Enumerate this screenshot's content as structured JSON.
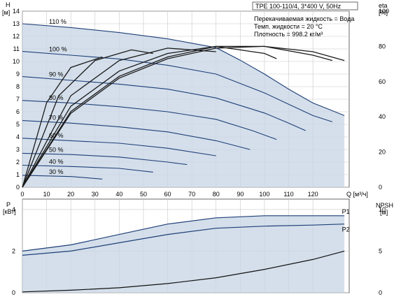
{
  "chart_data": [
    {
      "type": "line",
      "panel": "head-and-efficiency",
      "title": "TPE 100-110/4, 3*400 V, 50Hz",
      "notes": [
        "Перекачиваемая жидкость = Вода",
        "Темп. жидкости = 20 °C",
        "Плотность = 998.2 кг/м³"
      ],
      "ylabel": "H",
      "yunit": "[м]",
      "y2label": "eta",
      "y2unit": "[%]",
      "xlabel": "Q [м³/ч]",
      "xlim": [
        0,
        135
      ],
      "ylim": [
        0,
        14
      ],
      "y2lim": [
        0,
        100
      ],
      "xticks": [
        0,
        10,
        20,
        30,
        40,
        50,
        60,
        70,
        80,
        90,
        100,
        110,
        120
      ],
      "yticks": [
        0,
        1,
        2,
        3,
        4,
        5,
        6,
        7,
        8,
        9,
        10,
        11,
        12,
        13,
        14
      ],
      "y2ticks": [
        0,
        20,
        40,
        60,
        80,
        100
      ],
      "grid": true,
      "series": [
        {
          "name": "110 %",
          "x": [
            0,
            20,
            40,
            60,
            80,
            90,
            100,
            110,
            120,
            133
          ],
          "y": [
            13.0,
            12.7,
            12.3,
            11.8,
            11.1,
            10.1,
            9.0,
            7.8,
            6.7,
            5.7
          ]
        },
        {
          "name": "100 %",
          "x": [
            0,
            20,
            40,
            60,
            80,
            100,
            110,
            120,
            128
          ],
          "y": [
            10.8,
            10.5,
            10.2,
            9.7,
            9.0,
            7.5,
            6.6,
            5.7,
            5.2
          ]
        },
        {
          "name": "90 %",
          "x": [
            0,
            20,
            40,
            60,
            80,
            100,
            110,
            117
          ],
          "y": [
            8.8,
            8.5,
            8.2,
            7.8,
            7.1,
            5.9,
            5.1,
            4.5
          ]
        },
        {
          "name": "80 %",
          "x": [
            0,
            20,
            40,
            60,
            80,
            95,
            105
          ],
          "y": [
            6.9,
            6.7,
            6.4,
            6.0,
            5.4,
            4.5,
            3.8
          ]
        },
        {
          "name": "70 %",
          "x": [
            0,
            20,
            40,
            60,
            80,
            94
          ],
          "y": [
            5.3,
            5.1,
            4.8,
            4.4,
            3.7,
            3.0
          ]
        },
        {
          "name": "60 %",
          "x": [
            0,
            20,
            40,
            60,
            80
          ],
          "y": [
            3.9,
            3.7,
            3.5,
            3.1,
            2.5
          ]
        },
        {
          "name": "50 %",
          "x": [
            0,
            20,
            40,
            60,
            68
          ],
          "y": [
            2.7,
            2.6,
            2.4,
            2.0,
            1.8
          ]
        },
        {
          "name": "40 %",
          "x": [
            0,
            20,
            40,
            54
          ],
          "y": [
            1.75,
            1.65,
            1.5,
            1.2
          ]
        },
        {
          "name": "30 %",
          "x": [
            0,
            20,
            33
          ],
          "y": [
            0.95,
            0.85,
            0.65
          ]
        },
        {
          "name": "eta 110 %",
          "x": [
            0,
            20,
            40,
            60,
            80,
            100,
            120,
            133
          ],
          "y": [
            0,
            42,
            62,
            73,
            79,
            80,
            77,
            72
          ]
        },
        {
          "name": "eta 100 %",
          "x": [
            0,
            20,
            40,
            60,
            80,
            100,
            120,
            128
          ],
          "y": [
            0,
            43,
            63,
            74,
            80,
            80,
            75,
            72
          ]
        },
        {
          "name": "eta 80 %",
          "x": [
            0,
            20,
            40,
            60,
            80,
            100,
            105
          ],
          "y": [
            0,
            46,
            66,
            76,
            80,
            76,
            73
          ]
        },
        {
          "name": "eta 60 %",
          "x": [
            0,
            20,
            40,
            60,
            80
          ],
          "y": [
            0,
            52,
            72,
            79,
            77
          ]
        },
        {
          "name": "eta 40 %",
          "x": [
            0,
            15,
            30,
            45,
            54
          ],
          "y": [
            0,
            52,
            72,
            78,
            76
          ]
        },
        {
          "name": "eta 30 %",
          "x": [
            0,
            10,
            20,
            33
          ],
          "y": [
            0,
            48,
            68,
            74
          ]
        }
      ]
    },
    {
      "type": "line",
      "panel": "power-and-npsh",
      "ylabel": "P",
      "yunit": "[кВт]",
      "y2label": "NPSH",
      "y2unit": "[м]",
      "xlim": [
        0,
        135
      ],
      "ylim": [
        0,
        4.5
      ],
      "y2lim": [
        0,
        11.25
      ],
      "yticks": [
        0,
        2,
        4
      ],
      "y2ticks": [
        0,
        5,
        10
      ],
      "grid": true,
      "series": [
        {
          "name": "P1",
          "x": [
            0,
            20,
            40,
            60,
            80,
            100,
            120,
            133
          ],
          "y": [
            2.0,
            2.3,
            2.8,
            3.3,
            3.6,
            3.7,
            3.7,
            3.7
          ]
        },
        {
          "name": "P2",
          "x": [
            0,
            20,
            40,
            60,
            80,
            100,
            120,
            133
          ],
          "y": [
            1.8,
            2.0,
            2.4,
            2.8,
            3.1,
            3.2,
            3.25,
            3.3
          ]
        },
        {
          "name": "NPSH",
          "x": [
            0,
            20,
            40,
            60,
            80,
            100,
            120,
            133
          ],
          "y": [
            0.1,
            0.3,
            0.6,
            1.1,
            1.8,
            2.8,
            4.0,
            5.0
          ]
        }
      ],
      "series_labels": [
        "P1",
        "P2"
      ]
    }
  ]
}
